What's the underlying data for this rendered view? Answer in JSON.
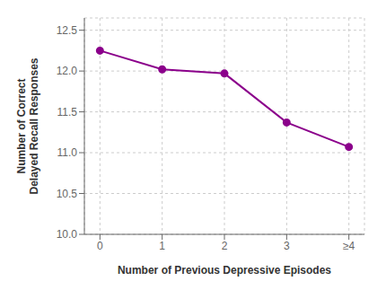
{
  "chart_data": {
    "type": "line",
    "xlabel": "Number of Previous Depressive Episodes",
    "ylabel": "Number of Correct\nDelayed Recall Responses",
    "x": [
      0,
      1,
      2,
      3,
      4
    ],
    "values": [
      12.25,
      12.02,
      11.97,
      11.37,
      11.07
    ],
    "color": "#8B008B",
    "marker": "circle",
    "xlim": [
      -0.25,
      4.25
    ],
    "xticks": [
      0,
      1,
      2,
      3,
      {
        "value": 4,
        "label": "≥4"
      }
    ],
    "ylim": [
      10.0,
      12.65
    ],
    "yticks": [
      {
        "value": 10.0,
        "label": "10.0"
      },
      10.5,
      {
        "value": 11.0,
        "label": "11.0"
      },
      11.5,
      {
        "value": 12.0,
        "label": "12.0"
      },
      12.5
    ],
    "grid": true
  }
}
